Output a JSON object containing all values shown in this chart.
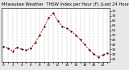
{
  "title": "Milwaukee Weather  THSW Index per Hour (F) (Last 24 Hours)",
  "bg_color": "#e8e8e8",
  "plot_bg_color": "#ffffff",
  "line_color": "#cc0000",
  "marker_color": "#000000",
  "grid_color": "#999999",
  "hours": [
    0,
    1,
    2,
    3,
    4,
    5,
    6,
    7,
    8,
    9,
    10,
    11,
    12,
    13,
    14,
    15,
    16,
    17,
    18,
    19,
    20,
    21,
    22,
    23
  ],
  "values": [
    38,
    36,
    33,
    37,
    35,
    34,
    36,
    42,
    50,
    59,
    68,
    73,
    65,
    59,
    57,
    54,
    50,
    45,
    40,
    34,
    30,
    27,
    29,
    31
  ],
  "ylim": [
    22,
    78
  ],
  "yticks": [
    25,
    30,
    35,
    40,
    45,
    50,
    55,
    60,
    65,
    70,
    75
  ],
  "ytick_labels": [
    "25",
    "30",
    "35",
    "40",
    "45",
    "50",
    "55",
    "60",
    "65",
    "70",
    "75"
  ],
  "title_fontsize": 3.8,
  "tick_fontsize": 3.0,
  "line_width": 0.7,
  "marker_size": 1.2,
  "grid_linewidth": 0.35
}
